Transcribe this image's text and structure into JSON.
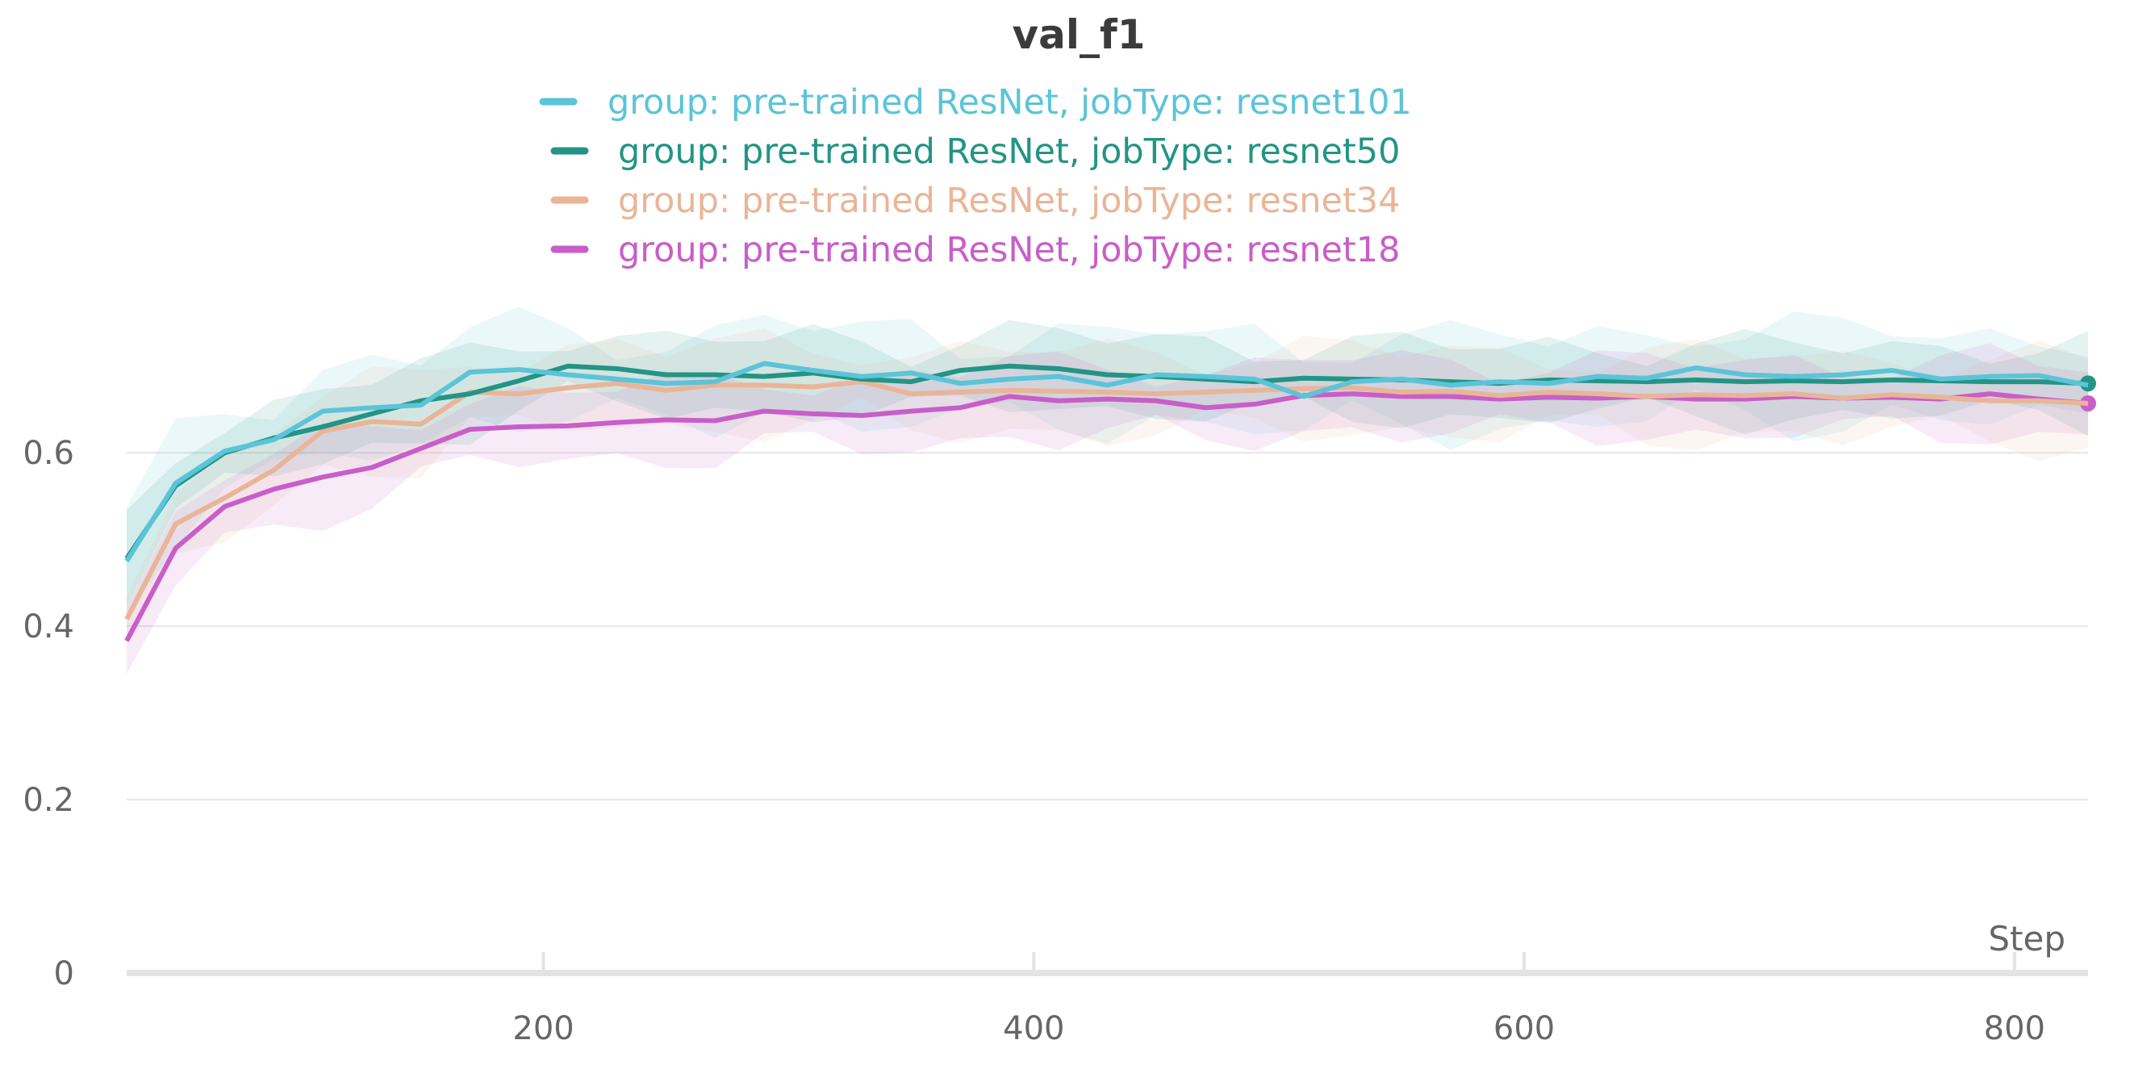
{
  "chart_data": {
    "type": "line",
    "title": "val_f1",
    "xlabel": "Step",
    "ylabel": "",
    "xlim": [
      30,
      830
    ],
    "ylim": [
      0,
      0.75
    ],
    "x_ticks": [
      200,
      400,
      600,
      800
    ],
    "y_ticks": [
      0,
      0.2,
      0.4,
      0.6
    ],
    "y_tick_labels": [
      "0",
      "0.2",
      "0.4",
      "0.6"
    ],
    "grid": true,
    "legend_position": "top-center",
    "x": [
      30,
      50,
      70,
      90,
      110,
      130,
      150,
      170,
      190,
      210,
      230,
      250,
      270,
      290,
      310,
      330,
      350,
      370,
      390,
      410,
      430,
      450,
      470,
      490,
      510,
      530,
      550,
      570,
      590,
      610,
      630,
      650,
      670,
      690,
      710,
      730,
      750,
      770,
      790,
      810,
      830
    ],
    "series": [
      {
        "name": "group: pre-trained ResNet, jobType: resnet101",
        "color": "#5bc4d8",
        "band": 0.05,
        "values": [
          0.475,
          0.565,
          0.602,
          0.615,
          0.648,
          0.652,
          0.655,
          0.693,
          0.696,
          0.69,
          0.685,
          0.68,
          0.682,
          0.703,
          0.695,
          0.688,
          0.692,
          0.68,
          0.685,
          0.688,
          0.678,
          0.69,
          0.688,
          0.685,
          0.665,
          0.682,
          0.685,
          0.678,
          0.682,
          0.68,
          0.688,
          0.686,
          0.698,
          0.69,
          0.688,
          0.69,
          0.695,
          0.685,
          0.688,
          0.689,
          0.678
        ]
      },
      {
        "name": "group: pre-trained ResNet, jobType: resnet50",
        "color": "#239485",
        "band": 0.04,
        "values": [
          0.478,
          0.562,
          0.6,
          0.617,
          0.63,
          0.645,
          0.66,
          0.668,
          0.683,
          0.7,
          0.697,
          0.69,
          0.69,
          0.688,
          0.692,
          0.685,
          0.682,
          0.695,
          0.7,
          0.697,
          0.69,
          0.688,
          0.685,
          0.682,
          0.686,
          0.685,
          0.684,
          0.682,
          0.68,
          0.684,
          0.683,
          0.682,
          0.684,
          0.682,
          0.683,
          0.682,
          0.684,
          0.683,
          0.682,
          0.682,
          0.68
        ]
      },
      {
        "name": "group: pre-trained ResNet, jobType: resnet34",
        "color": "#e9b597",
        "band": 0.045,
        "values": [
          0.408,
          0.518,
          0.548,
          0.58,
          0.625,
          0.636,
          0.633,
          0.67,
          0.668,
          0.675,
          0.68,
          0.672,
          0.678,
          0.678,
          0.676,
          0.682,
          0.668,
          0.67,
          0.672,
          0.671,
          0.67,
          0.668,
          0.67,
          0.672,
          0.674,
          0.675,
          0.67,
          0.671,
          0.666,
          0.67,
          0.668,
          0.665,
          0.667,
          0.666,
          0.668,
          0.663,
          0.667,
          0.664,
          0.66,
          0.66,
          0.657
        ]
      },
      {
        "name": "group: pre-trained ResNet, jobType: resnet18",
        "color": "#c85ec8",
        "band": 0.04,
        "values": [
          0.383,
          0.49,
          0.538,
          0.558,
          0.572,
          0.583,
          0.605,
          0.627,
          0.63,
          0.631,
          0.635,
          0.638,
          0.637,
          0.648,
          0.645,
          0.643,
          0.648,
          0.652,
          0.665,
          0.66,
          0.662,
          0.66,
          0.652,
          0.656,
          0.666,
          0.668,
          0.665,
          0.665,
          0.662,
          0.664,
          0.663,
          0.665,
          0.662,
          0.662,
          0.665,
          0.663,
          0.664,
          0.662,
          0.668,
          0.662,
          0.657
        ]
      }
    ]
  }
}
